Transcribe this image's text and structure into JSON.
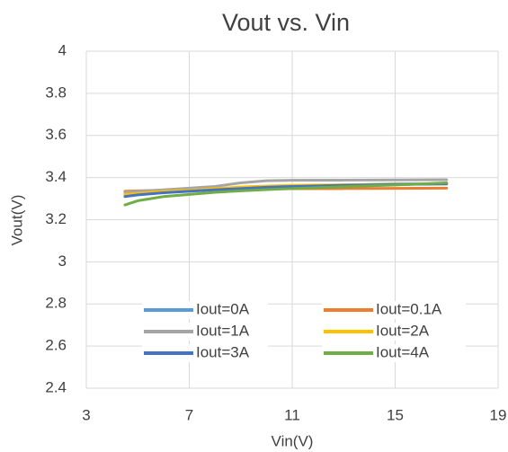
{
  "chart_data": {
    "type": "line",
    "title": "Vout vs. Vin",
    "xlabel": "Vin(V)",
    "ylabel": "Vout(V)",
    "x": [
      4.5,
      5,
      6,
      7,
      8,
      9,
      10,
      11,
      13,
      15,
      17
    ],
    "series": [
      {
        "name": "Iout=0A",
        "color": "#5b9bd5",
        "values": [
          3.32,
          3.325,
          3.335,
          3.34,
          3.345,
          3.35,
          3.355,
          3.36,
          3.365,
          3.37,
          3.37
        ]
      },
      {
        "name": "Iout=0.1A",
        "color": "#ed7d31",
        "values": [
          3.335,
          3.337,
          3.34,
          3.342,
          3.343,
          3.345,
          3.346,
          3.347,
          3.348,
          3.349,
          3.35
        ]
      },
      {
        "name": "Iout=1A",
        "color": "#a5a5a5",
        "values": [
          3.33,
          3.335,
          3.342,
          3.35,
          3.358,
          3.375,
          3.385,
          3.387,
          3.388,
          3.389,
          3.39
        ]
      },
      {
        "name": "Iout=2A",
        "color": "#ffc000",
        "values": [
          3.32,
          3.325,
          3.335,
          3.34,
          3.348,
          3.355,
          3.36,
          3.363,
          3.366,
          3.368,
          3.37
        ]
      },
      {
        "name": "Iout=3A",
        "color": "#4472c4",
        "values": [
          3.31,
          3.318,
          3.328,
          3.335,
          3.342,
          3.348,
          3.354,
          3.358,
          3.363,
          3.367,
          3.37
        ]
      },
      {
        "name": "Iout=4A",
        "color": "#70ad47",
        "values": [
          3.27,
          3.29,
          3.31,
          3.32,
          3.33,
          3.337,
          3.343,
          3.348,
          3.357,
          3.365,
          3.375
        ]
      }
    ],
    "xlim": [
      3,
      19
    ],
    "xticks": [
      3,
      7,
      11,
      15,
      19
    ],
    "ylim": [
      2.4,
      4
    ],
    "yticks": [
      2.4,
      2.6,
      2.8,
      3,
      3.2,
      3.4,
      3.6,
      3.8,
      4
    ],
    "grid": true,
    "legend": "bottom"
  }
}
